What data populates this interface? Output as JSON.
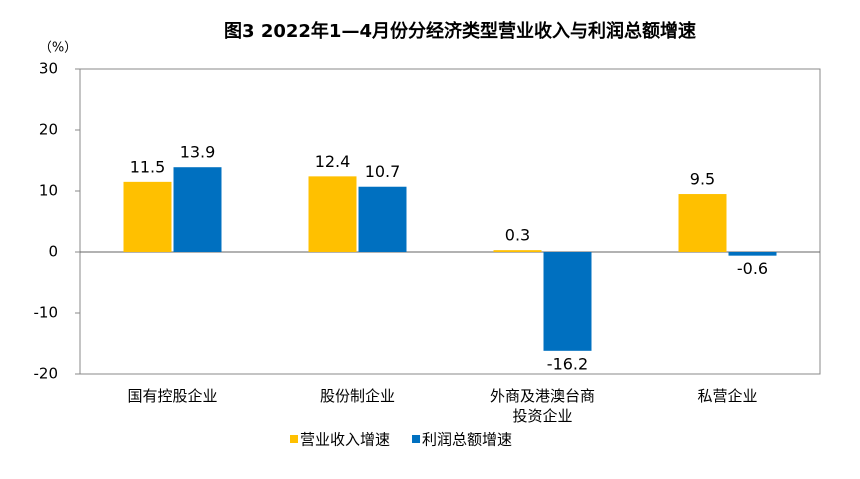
{
  "chart_data": {
    "type": "bar",
    "title": "图3  2022年1—4月份分经济类型营业收入与利润总额增速",
    "y_label": "（%）",
    "categories": [
      "国有控股企业",
      "股份制企业",
      "外商及港澳台商投资企业",
      "私营企业"
    ],
    "series": [
      {
        "name": "营业收入增速",
        "color": "#FFC000",
        "values": [
          11.5,
          12.4,
          0.3,
          9.5
        ]
      },
      {
        "name": "利润总额增速",
        "color": "#0070C0",
        "values": [
          13.9,
          10.7,
          -16.2,
          -0.6
        ]
      }
    ],
    "ylim": [
      -20,
      30
    ],
    "yticks": [
      -20,
      -10,
      0,
      10,
      20,
      30
    ],
    "grid": false,
    "legend": "bottom"
  }
}
